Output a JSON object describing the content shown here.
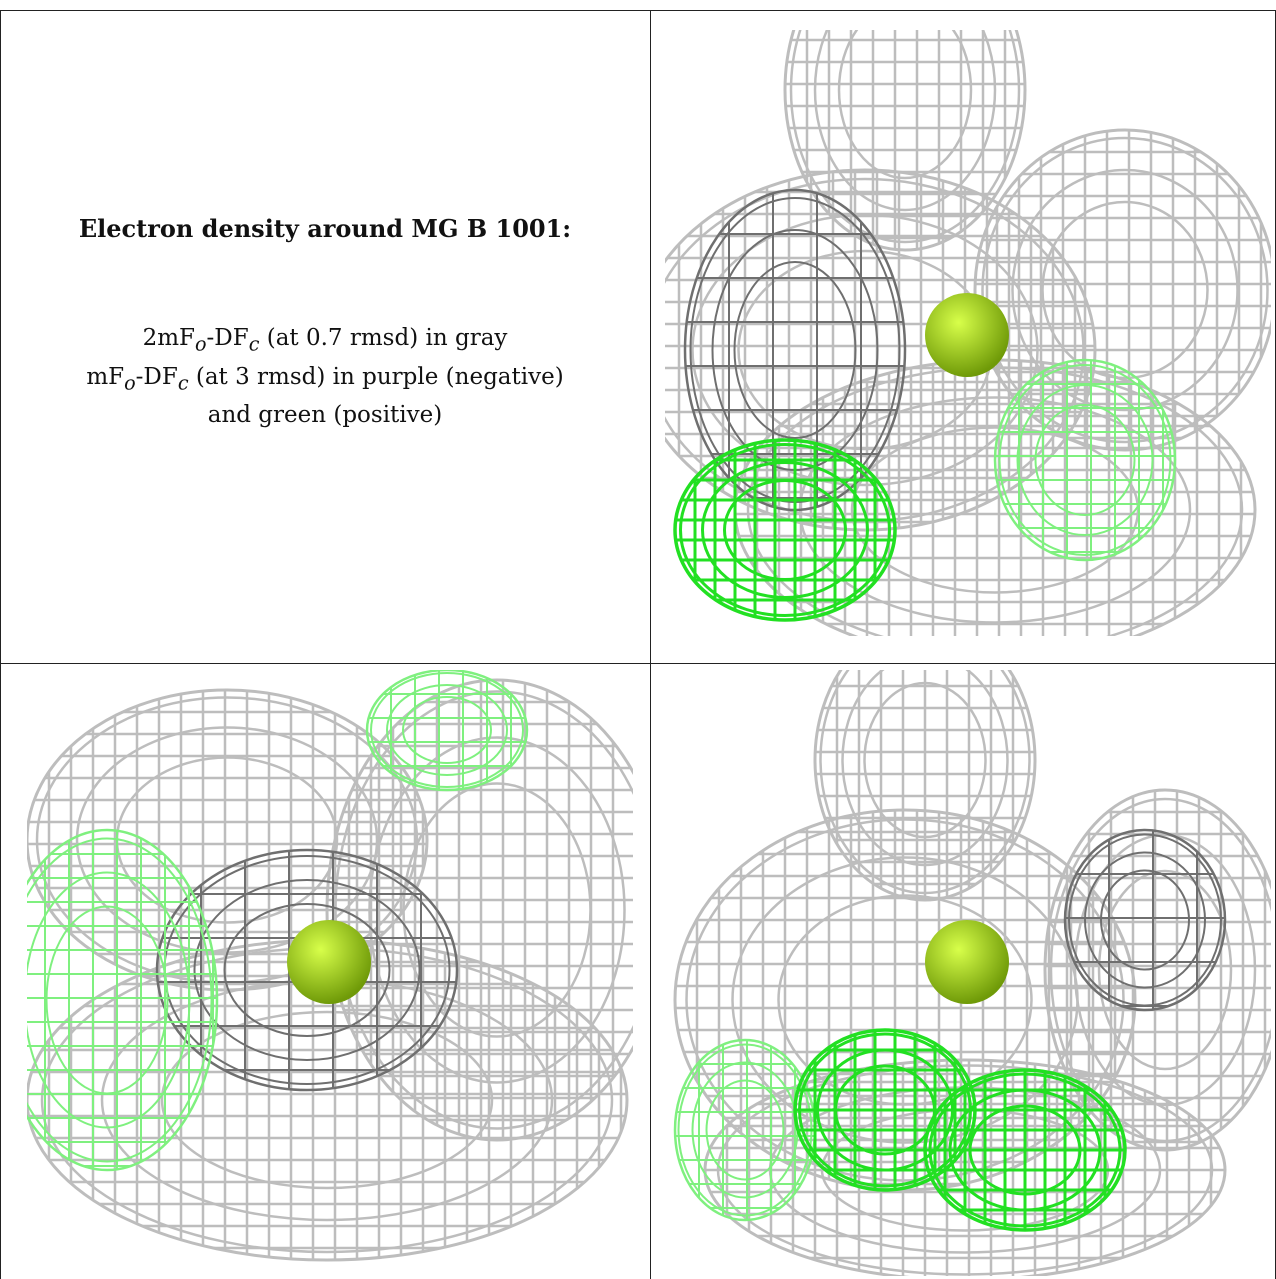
{
  "heading": "Electron density around MG B 1001:",
  "legend": {
    "line1_a": "2mF",
    "line1_sub1": "o",
    "line1_b": "-DF",
    "line1_sub2": "c",
    "line1_c": " (at 0.7 rmsd) in gray",
    "line2_a": "mF",
    "line2_sub1": "o",
    "line2_b": "-DF",
    "line2_sub2": "c",
    "line2_c": " (at 3 rmsd) in purple (negative)",
    "line3": "and green (positive)"
  },
  "colors": {
    "mesh_gray": "#bdbdbd",
    "mesh_dark": "#6f6f6f",
    "mesh_green": "#22e022",
    "mesh_light_green": "#7ff07f",
    "ion": "#9acd1a"
  },
  "panels": [
    {
      "name": "view-top-right"
    },
    {
      "name": "view-bottom-left"
    },
    {
      "name": "view-bottom-right"
    }
  ]
}
